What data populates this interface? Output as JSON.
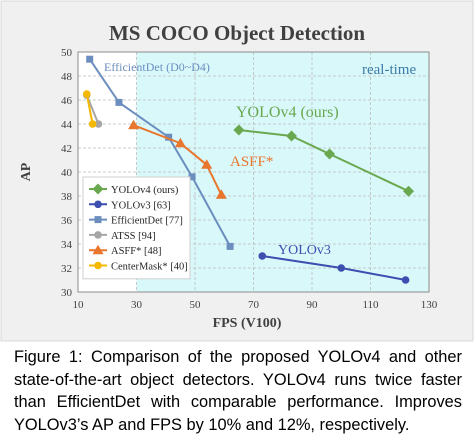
{
  "chart_data": {
    "type": "scatter",
    "title": "MS COCO Object Detection",
    "xlabel": "FPS (V100)",
    "ylabel": "AP",
    "xlim": [
      10,
      130
    ],
    "ylim": [
      30,
      50
    ],
    "xticks": [
      10,
      30,
      50,
      70,
      90,
      110,
      130
    ],
    "yticks": [
      30,
      32,
      34,
      36,
      38,
      40,
      42,
      44,
      46,
      48,
      50
    ],
    "realtime_region": {
      "label": "real-time",
      "x_from": 30,
      "x_to": 130,
      "color": "#d8f8fa"
    },
    "grid": true,
    "legend_position": "lower-left",
    "series": [
      {
        "name": "YOLOv4 (ours)",
        "color": "#6aa84f",
        "marker": "diamond",
        "x": [
          65,
          83,
          96,
          123
        ],
        "y": [
          43.5,
          43.0,
          41.5,
          38.4
        ],
        "annotation": "YOLOv4 (ours)"
      },
      {
        "name": "YOLOv3 [63]",
        "color": "#3c4fb0",
        "marker": "circle",
        "x": [
          73,
          100,
          122
        ],
        "y": [
          33.0,
          32.0,
          31.0
        ],
        "annotation": "YOLOv3"
      },
      {
        "name": "EfficientDet [77]",
        "color": "#6c8ebf",
        "marker": "square",
        "x": [
          14,
          24,
          41,
          49,
          62
        ],
        "y": [
          49.4,
          45.8,
          42.9,
          39.6,
          33.8
        ],
        "annotation": "EfficientDet (D0~D4)"
      },
      {
        "name": "ATSS [94]",
        "color": "#a6a6a6",
        "marker": "circle",
        "x": [
          13,
          17
        ],
        "y": [
          46.4,
          44.0
        ]
      },
      {
        "name": "ASFF* [48]",
        "color": "#e8762d",
        "marker": "triangle",
        "x": [
          29,
          45,
          54,
          59
        ],
        "y": [
          43.9,
          42.4,
          40.6,
          38.1
        ],
        "annotation": "ASFF*"
      },
      {
        "name": "CenterMask* [40]",
        "color": "#f5b800",
        "marker": "circle",
        "x": [
          13,
          15
        ],
        "y": [
          46.5,
          44.0
        ]
      }
    ]
  },
  "caption": "Figure 1: Comparison of the proposed YOLOv4 and other state-of-the-art object detectors. YOLOv4 runs twice faster than EfficientDet with comparable performance. Improves YOLOv3’s AP and FPS by 10% and 12%, respectively."
}
